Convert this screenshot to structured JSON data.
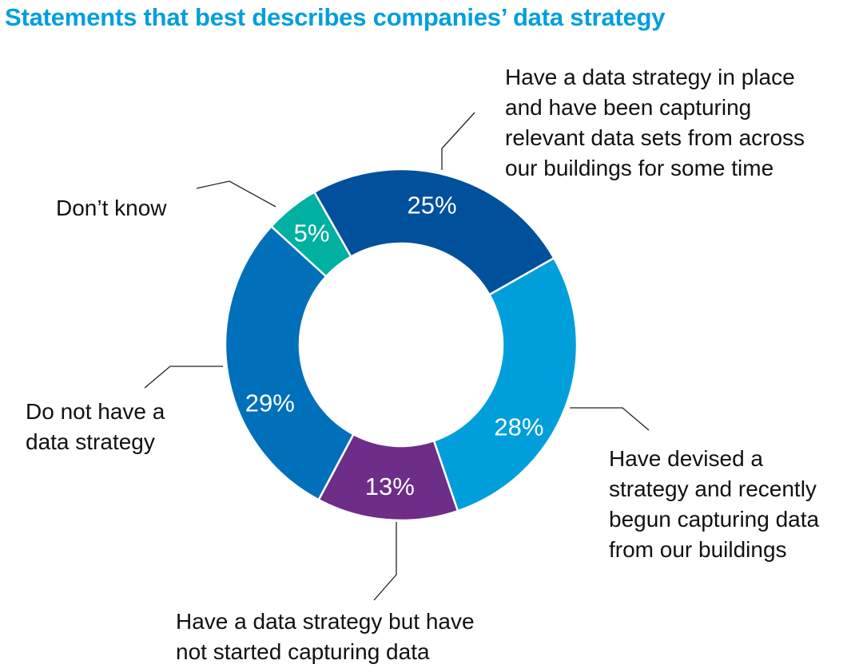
{
  "chart_data": {
    "type": "pie",
    "variant": "donut",
    "title": "Statements that best describes companies’ data strategy",
    "start_angle_deg": -29.6,
    "slices": [
      {
        "label": "Have a data strategy in place and have been capturing relevant data sets from across our buildings for some time",
        "value": 25,
        "display": "25%",
        "color": "#00509C"
      },
      {
        "label": "Have devised a strategy and recently begun capturing data from our buildings",
        "value": 28,
        "display": "28%",
        "color": "#009FDC"
      },
      {
        "label": "Have a data strategy but have not started capturing data",
        "value": 13,
        "display": "13%",
        "color": "#6D2D88"
      },
      {
        "label": "Do not have a data strategy",
        "value": 29,
        "display": "29%",
        "color": "#0070BA"
      },
      {
        "label": "Don’t know",
        "value": 5,
        "display": "5%",
        "color": "#00B0A0"
      }
    ]
  },
  "labels": {
    "in_place": [
      "Have a data strategy in place",
      "and have been capturing",
      "relevant data sets from across",
      "our buildings for some time"
    ],
    "devised": [
      "Have devised a",
      "strategy and recently",
      "begun capturing data",
      "from our buildings"
    ],
    "not_started": [
      "Have a data strategy but have",
      "not started capturing data"
    ],
    "none": [
      "Do not have a",
      "data strategy"
    ],
    "dont_know": [
      "Don’t know"
    ]
  }
}
